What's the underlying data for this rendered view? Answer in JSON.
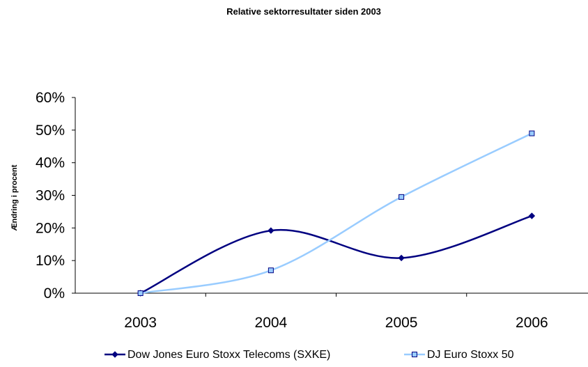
{
  "chart_data": {
    "type": "line",
    "title": "Relative sektorresultater siden 2003",
    "xlabel": "",
    "ylabel": "Ændring i procent",
    "categories": [
      "2003",
      "2004",
      "2005",
      "2006"
    ],
    "ylim": [
      0,
      60
    ],
    "yticks": [
      "0%",
      "10%",
      "20%",
      "30%",
      "40%",
      "50%",
      "60%"
    ],
    "grid": false,
    "legend_position": "bottom",
    "series": [
      {
        "name": "Dow Jones Euro Stoxx Telecoms (SXKE)",
        "values": [
          0,
          19.2,
          10.8,
          23.7
        ],
        "color": "#000080",
        "marker": "diamond"
      },
      {
        "name": "DJ Euro Stoxx 50",
        "values": [
          0,
          7.0,
          29.5,
          49.0
        ],
        "color": "#99ccff",
        "marker": "square"
      }
    ]
  }
}
